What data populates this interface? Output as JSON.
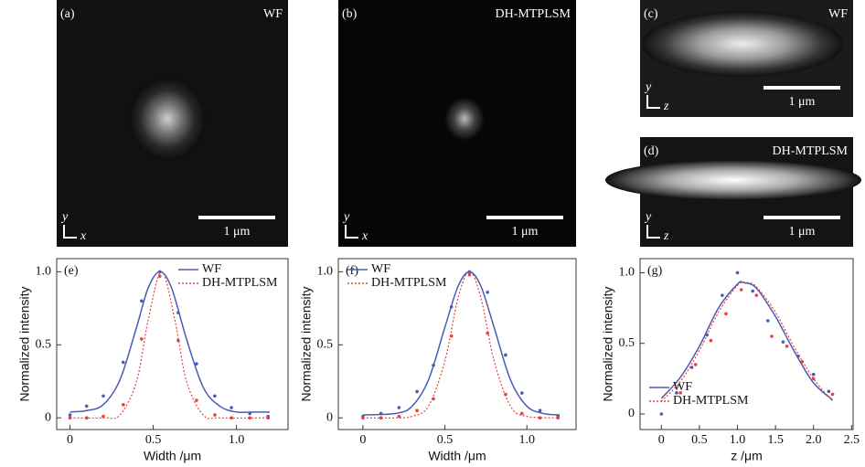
{
  "images": [
    {
      "label": "(a)",
      "tag": "WF",
      "scale_bar": "1 μm",
      "axis_v": "y",
      "axis_h": "x"
    },
    {
      "label": "(b)",
      "tag": "DH-MTPLSM",
      "scale_bar": "1 μm",
      "axis_v": "y",
      "axis_h": "x"
    },
    {
      "label": "(c)",
      "tag": "WF",
      "scale_bar": "1 μm",
      "axis_v": "y",
      "axis_h": "z"
    },
    {
      "label": "(d)",
      "tag": "DH-MTPLSM",
      "scale_bar": "1 μm",
      "axis_v": "y",
      "axis_h": "z"
    }
  ],
  "chart_data": [
    {
      "type": "line",
      "title": "(e)",
      "x_label": "Width /μm",
      "y_label": "Normalized intensity",
      "legend": "top-right",
      "xlim": [
        -0.08,
        1.31
      ],
      "ylim": [
        -0.08,
        1.09
      ],
      "xticks": [
        0,
        0.5,
        {
          "value": 1,
          "label": "1.0"
        }
      ],
      "yticks": [
        0,
        0.5,
        {
          "value": 1,
          "label": "1.0"
        }
      ],
      "series": [
        {
          "name": "WF",
          "color": "#4a5bb5",
          "dash": false,
          "x": [
            0,
            0.1,
            0.2,
            0.32,
            0.43,
            0.54,
            0.65,
            0.76,
            0.87,
            0.97,
            1.08,
            1.19
          ],
          "values": [
            0.02,
            0.08,
            0.15,
            0.38,
            0.8,
            1.0,
            0.72,
            0.37,
            0.15,
            0.07,
            0.03,
            0.01
          ],
          "fit_x": [
            0,
            0.1,
            0.2,
            0.3,
            0.4,
            0.47,
            0.54,
            0.61,
            0.7,
            0.8,
            0.9,
            1.0,
            1.1,
            1.2
          ],
          "fit_values": [
            0.04,
            0.05,
            0.09,
            0.26,
            0.62,
            0.89,
            1.0,
            0.89,
            0.54,
            0.21,
            0.08,
            0.04,
            0.04,
            0.04
          ]
        },
        {
          "name": "DH-MTPLSM",
          "color": "#e8413c",
          "dash": true,
          "x": [
            0,
            0.1,
            0.2,
            0.32,
            0.43,
            0.54,
            0.65,
            0.76,
            0.87,
            0.97,
            1.08,
            1.19
          ],
          "values": [
            0,
            0,
            0.01,
            0.09,
            0.54,
            0.97,
            0.53,
            0.12,
            0.02,
            0,
            0,
            0
          ],
          "fit_x": [
            0,
            0.2,
            0.3,
            0.4,
            0.47,
            0.55,
            0.63,
            0.7,
            0.8,
            0.9,
            1.2
          ],
          "fit_values": [
            0,
            0,
            0.02,
            0.25,
            0.67,
            1.0,
            0.67,
            0.25,
            0.02,
            0,
            0
          ]
        }
      ]
    },
    {
      "type": "line",
      "title": "(f)",
      "x_label": "Width /μm",
      "y_label": "Normalized intensity",
      "legend": "top-left",
      "xlim": [
        -0.15,
        1.3
      ],
      "ylim": [
        -0.08,
        1.09
      ],
      "xticks": [
        0,
        0.5,
        {
          "value": 1,
          "label": "1.0"
        }
      ],
      "yticks": [
        0,
        0.5,
        {
          "value": 1,
          "label": "1.0"
        }
      ],
      "series": [
        {
          "name": "WF",
          "color": "#4a5bb5",
          "dash": false,
          "x": [
            0,
            0.11,
            0.22,
            0.33,
            0.43,
            0.54,
            0.65,
            0.76,
            0.87,
            0.97,
            1.08,
            1.19
          ],
          "values": [
            0.01,
            0.03,
            0.07,
            0.18,
            0.36,
            0.76,
            1.0,
            0.86,
            0.43,
            0.17,
            0.05,
            0.01
          ],
          "fit_x": [
            0,
            0.2,
            0.3,
            0.4,
            0.5,
            0.58,
            0.65,
            0.72,
            0.8,
            0.9,
            1.0,
            1.1,
            1.2
          ],
          "fit_values": [
            0.02,
            0.03,
            0.08,
            0.26,
            0.62,
            0.9,
            1.0,
            0.9,
            0.62,
            0.26,
            0.08,
            0.03,
            0.02
          ]
        },
        {
          "name": "DH-MTPLSM",
          "color": "#e8413c",
          "dash": true,
          "x": [
            0,
            0.11,
            0.22,
            0.33,
            0.43,
            0.54,
            0.65,
            0.76,
            0.87,
            0.97,
            1.08,
            1.19
          ],
          "values": [
            0,
            0,
            0.01,
            0.05,
            0.13,
            0.56,
            0.98,
            0.58,
            0.16,
            0.03,
            0,
            0
          ],
          "fit_x": [
            0,
            0.2,
            0.3,
            0.4,
            0.5,
            0.58,
            0.65,
            0.72,
            0.8,
            0.9,
            1.0,
            1.2
          ],
          "fit_values": [
            0,
            0,
            0.01,
            0.08,
            0.39,
            0.82,
            1.0,
            0.82,
            0.39,
            0.08,
            0.01,
            0
          ]
        }
      ]
    },
    {
      "type": "line",
      "title": "(g)",
      "x_label": "z /μm",
      "y_label": "Normalized intensity",
      "legend": "bottom-left",
      "xlim": [
        -0.28,
        2.52
      ],
      "ylim": [
        -0.11,
        1.1
      ],
      "xticks": [
        0,
        0.5,
        {
          "value": 1,
          "label": "1.0"
        },
        1.5,
        {
          "value": 2,
          "label": "2.0"
        },
        2.5
      ],
      "yticks": [
        0,
        0.5,
        {
          "value": 1,
          "label": "1.0"
        }
      ],
      "series": [
        {
          "name": "WF",
          "color": "#4a5bb5",
          "dash": false,
          "x": [
            0,
            0.2,
            0.4,
            0.6,
            0.8,
            1.0,
            1.2,
            1.4,
            1.6,
            1.8,
            2.0,
            2.2
          ],
          "values": [
            0,
            0.15,
            0.33,
            0.56,
            0.84,
            1.0,
            0.87,
            0.66,
            0.51,
            0.41,
            0.28,
            0.16
          ],
          "fit_x": [
            0,
            0.25,
            0.5,
            0.75,
            1.0,
            1.08,
            1.25,
            1.5,
            1.75,
            2.0,
            2.25
          ],
          "fit_values": [
            0.11,
            0.26,
            0.48,
            0.75,
            0.92,
            0.93,
            0.89,
            0.69,
            0.44,
            0.22,
            0.1
          ]
        },
        {
          "name": "DH-MTPLSM",
          "color": "#e8413c",
          "dash": true,
          "x": [
            0.25,
            0.45,
            0.65,
            0.85,
            1.05,
            1.25,
            1.45,
            1.65,
            1.85,
            2.0,
            2.25
          ],
          "values": [
            0.15,
            0.35,
            0.52,
            0.71,
            0.88,
            0.84,
            0.55,
            0.48,
            0.37,
            0.25,
            0.14
          ],
          "fit_x": [
            0,
            0.25,
            0.5,
            0.75,
            1.0,
            1.12,
            1.25,
            1.5,
            1.75,
            2.0,
            2.25
          ],
          "fit_values": [
            0.09,
            0.23,
            0.45,
            0.72,
            0.91,
            0.93,
            0.9,
            0.72,
            0.47,
            0.25,
            0.09
          ]
        }
      ]
    }
  ]
}
